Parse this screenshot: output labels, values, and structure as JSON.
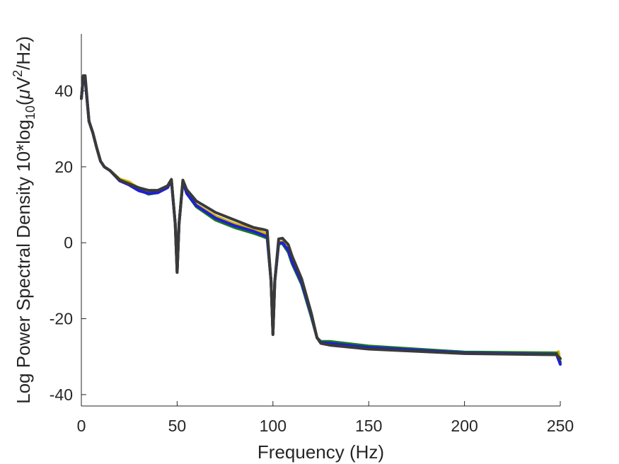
{
  "chart_data": {
    "type": "line",
    "title": "",
    "xlabel": "Frequency (Hz)",
    "ylabel": {
      "part1": "Log Power Spectral Density 10*log",
      "sub10": "10",
      "part2": "(",
      "mu": "μ",
      "v": "V",
      "sup2": "2",
      "part3": "/Hz)"
    },
    "xlim": [
      0,
      250
    ],
    "ylim": [
      -43,
      55
    ],
    "x_ticks": [
      0,
      50,
      100,
      150,
      200,
      250
    ],
    "x_tick_labels": [
      "0",
      "50",
      "100",
      "150",
      "200",
      "250"
    ],
    "y_ticks": [
      40,
      20,
      0,
      -20,
      -40
    ],
    "y_tick_labels": [
      "40",
      "20",
      "0",
      "-20",
      "-40"
    ],
    "grid": false,
    "legend": "none",
    "series": [
      {
        "color": "#d4b000",
        "points": [
          [
            0,
            38
          ],
          [
            1,
            43.5
          ],
          [
            2,
            43
          ],
          [
            4,
            32
          ],
          [
            6,
            29
          ],
          [
            8,
            25
          ],
          [
            10,
            21.5
          ],
          [
            12,
            20
          ],
          [
            15,
            19
          ],
          [
            20,
            16.8
          ],
          [
            25,
            16
          ],
          [
            30,
            14.3
          ],
          [
            35,
            13.6
          ],
          [
            40,
            13.6
          ],
          [
            45,
            15
          ],
          [
            47,
            16.6
          ],
          [
            49,
            5
          ],
          [
            50,
            -7.8
          ],
          [
            51,
            5
          ],
          [
            53,
            16.3
          ],
          [
            55,
            13.5
          ],
          [
            60,
            10
          ],
          [
            70,
            7
          ],
          [
            80,
            5
          ],
          [
            90,
            3.5
          ],
          [
            95,
            2.6
          ],
          [
            97,
            2.2
          ],
          [
            99,
            -10
          ],
          [
            100,
            -24
          ],
          [
            101,
            -10
          ],
          [
            103,
            0
          ],
          [
            105,
            0.3
          ],
          [
            108,
            -2
          ],
          [
            110,
            -5
          ],
          [
            115,
            -10
          ],
          [
            120,
            -19
          ],
          [
            123,
            -25
          ],
          [
            125,
            -26.3
          ],
          [
            130,
            -26.3
          ],
          [
            150,
            -27.5
          ],
          [
            200,
            -29
          ],
          [
            248,
            -29.2
          ],
          [
            249,
            -28.7
          ],
          [
            250,
            -31.5
          ]
        ]
      },
      {
        "color": "#1a7a1a",
        "points": [
          [
            0,
            38
          ],
          [
            1,
            43.5
          ],
          [
            2,
            43
          ],
          [
            4,
            32
          ],
          [
            6,
            29
          ],
          [
            8,
            25
          ],
          [
            10,
            21.5
          ],
          [
            12,
            20
          ],
          [
            15,
            19
          ],
          [
            20,
            16.5
          ],
          [
            25,
            15.5
          ],
          [
            30,
            14
          ],
          [
            35,
            12.8
          ],
          [
            40,
            13.2
          ],
          [
            45,
            14.7
          ],
          [
            47,
            16.4
          ],
          [
            49,
            5
          ],
          [
            50,
            -7.8
          ],
          [
            51,
            5
          ],
          [
            53,
            16.2
          ],
          [
            55,
            13
          ],
          [
            60,
            9.5
          ],
          [
            70,
            6
          ],
          [
            80,
            4
          ],
          [
            90,
            2.5
          ],
          [
            95,
            1.6
          ],
          [
            97,
            1.2
          ],
          [
            99,
            -10
          ],
          [
            100,
            -24
          ],
          [
            101,
            -10
          ],
          [
            103,
            -0.3
          ],
          [
            105,
            -0.2
          ],
          [
            108,
            -2.5
          ],
          [
            110,
            -5.5
          ],
          [
            115,
            -11
          ],
          [
            120,
            -19.5
          ],
          [
            123,
            -25
          ],
          [
            125,
            -26
          ],
          [
            130,
            -26
          ],
          [
            150,
            -27.2
          ],
          [
            200,
            -28.8
          ],
          [
            248,
            -29
          ],
          [
            250,
            -31.5
          ]
        ]
      },
      {
        "color": "#1f1fd6",
        "points": [
          [
            0,
            38
          ],
          [
            1,
            43.5
          ],
          [
            2,
            43
          ],
          [
            4,
            32
          ],
          [
            6,
            29
          ],
          [
            8,
            25
          ],
          [
            10,
            21.5
          ],
          [
            12,
            20
          ],
          [
            15,
            19
          ],
          [
            20,
            16.3
          ],
          [
            25,
            15.2
          ],
          [
            30,
            13.7
          ],
          [
            35,
            13
          ],
          [
            40,
            13.2
          ],
          [
            45,
            14.5
          ],
          [
            47,
            16.3
          ],
          [
            49,
            5
          ],
          [
            50,
            -7.8
          ],
          [
            51,
            5
          ],
          [
            53,
            16.1
          ],
          [
            55,
            13
          ],
          [
            60,
            9.8
          ],
          [
            70,
            6.5
          ],
          [
            80,
            4.5
          ],
          [
            90,
            3
          ],
          [
            95,
            2
          ],
          [
            97,
            1.6
          ],
          [
            99,
            -10
          ],
          [
            100,
            -24
          ],
          [
            101,
            -10
          ],
          [
            103,
            -0.1
          ],
          [
            105,
            0
          ],
          [
            108,
            -2
          ],
          [
            110,
            -5
          ],
          [
            115,
            -10.5
          ],
          [
            120,
            -19
          ],
          [
            123,
            -25
          ],
          [
            125,
            -26.3
          ],
          [
            130,
            -26.5
          ],
          [
            150,
            -27.6
          ],
          [
            200,
            -29
          ],
          [
            248,
            -29.4
          ],
          [
            250,
            -32
          ]
        ]
      },
      {
        "color": "#3a3a3a",
        "points": [
          [
            0,
            38
          ],
          [
            1,
            44
          ],
          [
            2,
            44
          ],
          [
            4,
            32
          ],
          [
            6,
            29
          ],
          [
            8,
            25
          ],
          [
            10,
            21.5
          ],
          [
            12,
            20
          ],
          [
            15,
            19
          ],
          [
            20,
            16.5
          ],
          [
            25,
            15.5
          ],
          [
            30,
            14.5
          ],
          [
            35,
            13.8
          ],
          [
            40,
            13.8
          ],
          [
            45,
            15
          ],
          [
            47,
            16.7
          ],
          [
            49,
            5
          ],
          [
            50,
            -7.8
          ],
          [
            51,
            5
          ],
          [
            53,
            16.5
          ],
          [
            55,
            14
          ],
          [
            60,
            11
          ],
          [
            65,
            9.5
          ],
          [
            70,
            8
          ],
          [
            80,
            6
          ],
          [
            90,
            4
          ],
          [
            95,
            3.5
          ],
          [
            97,
            3.2
          ],
          [
            99,
            -10
          ],
          [
            100,
            -24.2
          ],
          [
            101,
            -10
          ],
          [
            103,
            1
          ],
          [
            105,
            1.2
          ],
          [
            108,
            -0.5
          ],
          [
            110,
            -3.5
          ],
          [
            115,
            -9.5
          ],
          [
            120,
            -18.5
          ],
          [
            123,
            -25
          ],
          [
            125,
            -26.5
          ],
          [
            130,
            -27
          ],
          [
            150,
            -28
          ],
          [
            200,
            -29.2
          ],
          [
            248,
            -29.5
          ],
          [
            250,
            -30.5
          ]
        ]
      }
    ]
  }
}
